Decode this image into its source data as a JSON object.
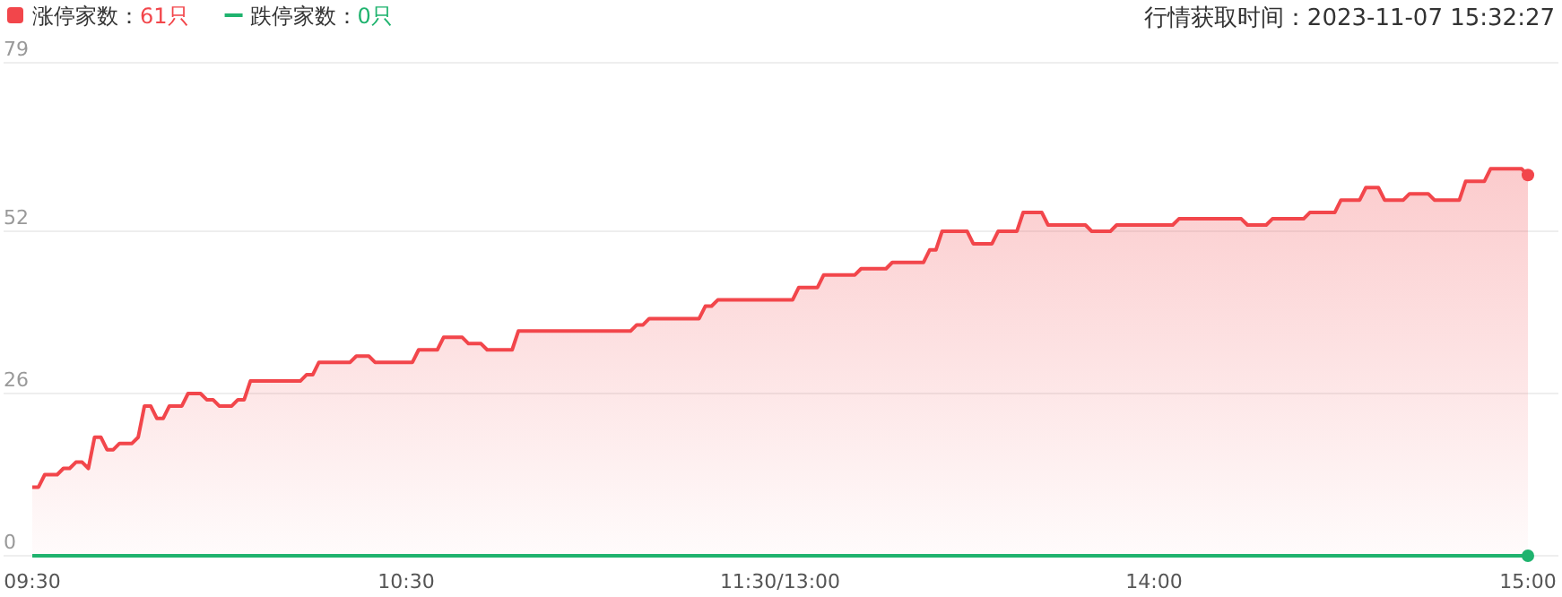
{
  "chart_data": {
    "type": "area",
    "title": "行情获取时间：2023-11-07 15:32:27",
    "categories": [
      "09:30",
      null,
      null,
      null,
      null,
      null,
      null,
      null,
      null,
      null,
      null,
      null,
      null,
      null,
      null,
      null,
      null,
      null,
      null,
      null,
      null,
      null,
      null,
      null,
      null,
      null,
      null,
      null,
      null,
      null,
      null,
      null,
      null,
      null,
      null,
      null,
      null,
      null,
      null,
      null,
      null,
      null,
      null,
      null,
      null,
      null,
      null,
      null,
      null,
      null,
      null,
      null,
      null,
      null,
      null,
      null,
      null,
      null,
      null,
      null,
      "10:30",
      null,
      null,
      null,
      null,
      null,
      null,
      null,
      null,
      null,
      null,
      null,
      null,
      null,
      null,
      null,
      null,
      null,
      null,
      null,
      null,
      null,
      null,
      null,
      null,
      null,
      null,
      null,
      null,
      null,
      null,
      null,
      null,
      null,
      null,
      null,
      null,
      null,
      null,
      null,
      null,
      null,
      null,
      null,
      null,
      null,
      null,
      null,
      null,
      null,
      null,
      null,
      null,
      null,
      null,
      null,
      null,
      null,
      null,
      null,
      "11:30/13:00",
      null,
      null,
      null,
      null,
      null,
      null,
      null,
      null,
      null,
      null,
      null,
      null,
      null,
      null,
      null,
      null,
      null,
      null,
      null,
      null,
      null,
      null,
      null,
      null,
      null,
      null,
      null,
      null,
      null,
      null,
      null,
      null,
      null,
      null,
      null,
      null,
      null,
      null,
      null,
      null,
      null,
      null,
      null,
      null,
      null,
      null,
      null,
      null,
      null,
      null,
      null,
      null,
      null,
      null,
      null,
      null,
      null,
      null,
      null,
      "14:00",
      null,
      null,
      null,
      null,
      null,
      null,
      null,
      null,
      null,
      null,
      null,
      null,
      null,
      null,
      null,
      null,
      null,
      null,
      null,
      null,
      null,
      null,
      null,
      null,
      null,
      null,
      null,
      null,
      null,
      null,
      null,
      null,
      null,
      null,
      null,
      null,
      null,
      null,
      null,
      null,
      null,
      null,
      null,
      null,
      null,
      null,
      null,
      null,
      null,
      null,
      null,
      null,
      null,
      null,
      null,
      null,
      null,
      null,
      null,
      "15:00"
    ],
    "series": [
      {
        "name": "涨停家数：61只",
        "color": "#f2464b",
        "values": [
          11,
          11,
          13,
          13,
          13,
          14,
          14,
          15,
          15,
          14,
          19,
          19,
          17,
          17,
          18,
          18,
          18,
          19,
          24,
          24,
          22,
          22,
          24,
          24,
          24,
          26,
          26,
          26,
          25,
          25,
          24,
          24,
          24,
          25,
          25,
          28,
          28,
          28,
          28,
          28,
          28,
          28,
          28,
          28,
          29,
          29,
          31,
          31,
          31,
          31,
          31,
          31,
          32,
          32,
          32,
          31,
          31,
          31,
          31,
          31,
          31,
          31,
          33,
          33,
          33,
          33,
          35,
          35,
          35,
          35,
          34,
          34,
          34,
          33,
          33,
          33,
          33,
          33,
          36,
          36,
          36,
          36,
          36,
          36,
          36,
          36,
          36,
          36,
          36,
          36,
          36,
          36,
          36,
          36,
          36,
          36,
          36,
          37,
          37,
          38,
          38,
          38,
          38,
          38,
          38,
          38,
          38,
          38,
          40,
          40,
          41,
          41,
          41,
          41,
          41,
          41,
          41,
          41,
          41,
          41,
          41,
          41,
          41,
          43,
          43,
          43,
          43,
          45,
          45,
          45,
          45,
          45,
          45,
          46,
          46,
          46,
          46,
          46,
          47,
          47,
          47,
          47,
          47,
          47,
          49,
          49,
          52,
          52,
          52,
          52,
          52,
          50,
          50,
          50,
          50,
          52,
          52,
          52,
          52,
          55,
          55,
          55,
          55,
          53,
          53,
          53,
          53,
          53,
          53,
          53,
          52,
          52,
          52,
          52,
          53,
          53,
          53,
          53,
          53,
          53,
          53,
          53,
          53,
          53,
          54,
          54,
          54,
          54,
          54,
          54,
          54,
          54,
          54,
          54,
          54,
          53,
          53,
          53,
          53,
          54,
          54,
          54,
          54,
          54,
          54,
          55,
          55,
          55,
          55,
          55,
          57,
          57,
          57,
          57,
          59,
          59,
          59,
          57,
          57,
          57,
          57,
          58,
          58,
          58,
          58,
          57,
          57,
          57,
          57,
          57,
          60,
          60,
          60,
          60,
          62,
          62,
          62,
          62,
          62,
          62,
          61
        ]
      },
      {
        "name": "跌停家数：0只",
        "color": "#1fb36e",
        "type": "line",
        "values": [
          0,
          0,
          0,
          0,
          0,
          0,
          0,
          0,
          0,
          0,
          0,
          0,
          0,
          0,
          0,
          0,
          0,
          0,
          0,
          0,
          0,
          0,
          0,
          0,
          0,
          0,
          0,
          0,
          0,
          0,
          0,
          0,
          0,
          0,
          0,
          0,
          0,
          0,
          0,
          0,
          0,
          0,
          0,
          0,
          0,
          0,
          0,
          0,
          0,
          0,
          0,
          0,
          0,
          0,
          0,
          0,
          0,
          0,
          0,
          0,
          0,
          0,
          0,
          0,
          0,
          0,
          0,
          0,
          0,
          0,
          0,
          0,
          0,
          0,
          0,
          0,
          0,
          0,
          0,
          0,
          0,
          0,
          0,
          0,
          0,
          0,
          0,
          0,
          0,
          0,
          0,
          0,
          0,
          0,
          0,
          0,
          0,
          0,
          0,
          0,
          0,
          0,
          0,
          0,
          0,
          0,
          0,
          0,
          0,
          0,
          0,
          0,
          0,
          0,
          0,
          0,
          0,
          0,
          0,
          0,
          0,
          0,
          0,
          0,
          0,
          0,
          0,
          0,
          0,
          0,
          0,
          0,
          0,
          0,
          0,
          0,
          0,
          0,
          0,
          0,
          0,
          0,
          0,
          0,
          0,
          0,
          0,
          0,
          0,
          0,
          0,
          0,
          0,
          0,
          0,
          0,
          0,
          0,
          0,
          0,
          0,
          0,
          0,
          0,
          0,
          0,
          0,
          0,
          0,
          0,
          0,
          0,
          0,
          0,
          0,
          0,
          0,
          0,
          0,
          0,
          0,
          0,
          0,
          0,
          0,
          0,
          0,
          0,
          0,
          0,
          0,
          0,
          0,
          0,
          0,
          0,
          0,
          0,
          0,
          0,
          0,
          0,
          0,
          0,
          0,
          0,
          0,
          0,
          0,
          0,
          0,
          0,
          0,
          0,
          0,
          0,
          0,
          0,
          0,
          0,
          0,
          0,
          0,
          0,
          0,
          0,
          0,
          0,
          0,
          0,
          0,
          0,
          0,
          0,
          0,
          0,
          0,
          0,
          0,
          0,
          0
        ]
      }
    ],
    "ylim": [
      0,
      79
    ],
    "yticks": [
      0,
      26,
      52,
      79
    ],
    "grid": "y",
    "legend": "top left"
  }
}
